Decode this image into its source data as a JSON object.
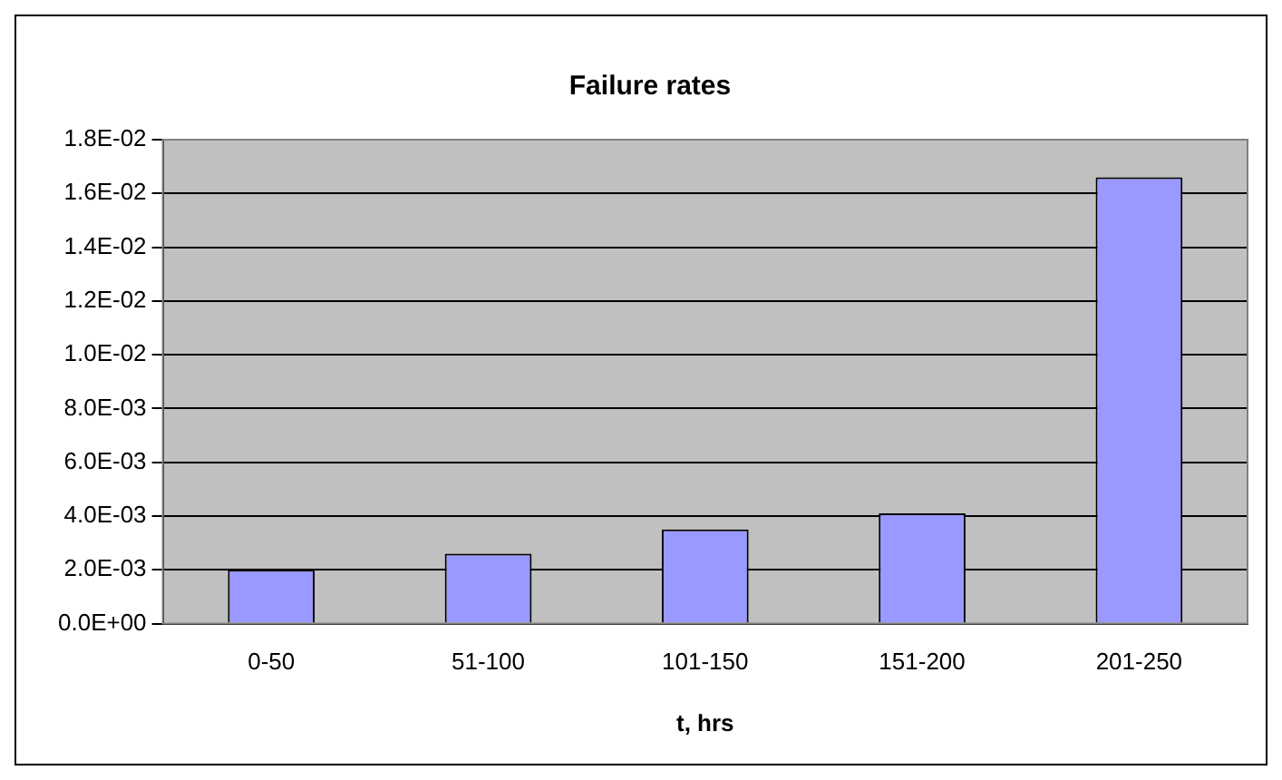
{
  "chart_data": {
    "type": "bar",
    "title": "Failure rates",
    "xlabel": "t, hrs",
    "categories": [
      "0-50",
      "51-100",
      "101-150",
      "151-200",
      "201-250"
    ],
    "values": [
      0.002,
      0.0026,
      0.0035,
      0.0041,
      0.0166
    ],
    "color": "#9999ff",
    "ylim": [
      0,
      0.018
    ],
    "yticks": [
      {
        "value": 0,
        "label": "0.0E+00"
      },
      {
        "value": 0.002,
        "label": "2.0E-03"
      },
      {
        "value": 0.004,
        "label": "4.0E-03"
      },
      {
        "value": 0.006,
        "label": "6.0E-03"
      },
      {
        "value": 0.008,
        "label": "8.0E-03"
      },
      {
        "value": 0.01,
        "label": "1.0E-02"
      },
      {
        "value": 0.012,
        "label": "1.2E-02"
      },
      {
        "value": 0.014,
        "label": "1.4E-02"
      },
      {
        "value": 0.016,
        "label": "1.6E-02"
      },
      {
        "value": 0.018,
        "label": "1.8E-02"
      }
    ],
    "grid": "y",
    "legend": false
  }
}
